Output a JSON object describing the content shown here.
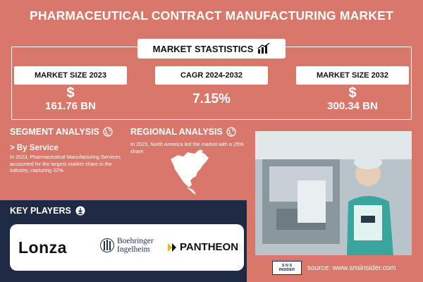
{
  "title": "PHARMACEUTICAL CONTRACT MANUFACTURING MARKET",
  "market_statistics": {
    "heading": "MARKET STASTISTICS",
    "items": [
      {
        "label": "MARKET SIZE 2023",
        "currency": "$",
        "value": "161.76 BN"
      },
      {
        "label": "CAGR 2024-2032",
        "value": "7.15%"
      },
      {
        "label": "MARKET SIZE 2032",
        "currency": "$",
        "value": "300.34 BN"
      }
    ]
  },
  "segment_analysis": {
    "title": "SEGMENT ANALYSIS",
    "subtitle": "> By Service",
    "text": "In 2023, Pharmaceutical Manufacturing Services accounted for the largest market share in the industry, capturing 32%."
  },
  "regional_analysis": {
    "title": "REGIONAL ANALYSIS",
    "text": "In 2023, North America led the market with a 25% share"
  },
  "key_players": {
    "title": "KEY PLAYERS",
    "lonza": "Lonza",
    "boehringer_line1": "Boehringer",
    "boehringer_line2": "Ingelheim",
    "pantheon": "PANTHEON"
  },
  "source": {
    "text": "source: www.snsinsider.com",
    "logo_line1": "S N S",
    "logo_line2": "INSIDER"
  },
  "colors": {
    "background": "#d9776a",
    "dark_panel": "#1f2b44",
    "white": "#ffffff"
  },
  "icons": [
    "chart-icon",
    "globe-icon",
    "download-icon",
    "north-america-map-icon",
    "boehringer-tower-icon"
  ]
}
